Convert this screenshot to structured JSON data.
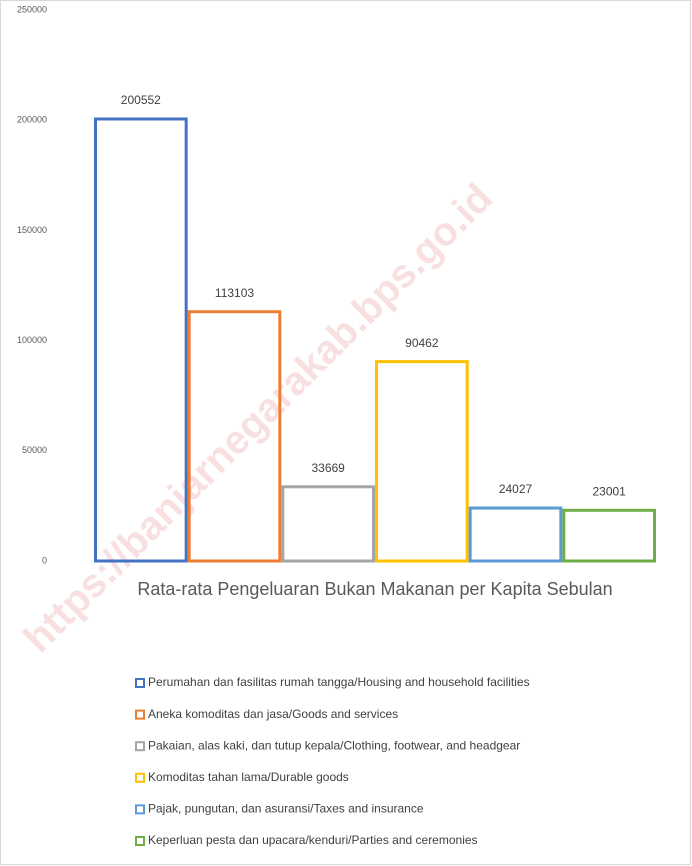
{
  "chart_data": {
    "type": "bar",
    "title": "Rata-rata Pengeluaran Bukan Makanan per Kapita Sebulan",
    "categories": [
      "Perumahan dan fasilitas rumah tangga/Housing and household facilities",
      "Aneka komoditas dan jasa/Goods and services",
      "Pakaian, alas kaki, dan tutup kepala/Clothing, footwear, and headgear",
      "Komoditas tahan lama/Durable goods",
      "Pajak, pungutan, dan asuransi/Taxes and insurance",
      "Keperluan pesta dan upacara/kenduri/Parties and ceremonies"
    ],
    "values": [
      200552,
      113103,
      33669,
      90462,
      24027,
      23001
    ],
    "colors": [
      "#4472c4",
      "#ed7d31",
      "#a5a5a5",
      "#ffc000",
      "#5b9bd5",
      "#70ad47"
    ],
    "ylim": [
      0,
      250000
    ],
    "yticks": [
      0,
      50000,
      100000,
      150000,
      200000,
      250000
    ],
    "grid": false,
    "legend": "bottom",
    "watermark": "https://banjarnegarakab.bps.go.id"
  }
}
